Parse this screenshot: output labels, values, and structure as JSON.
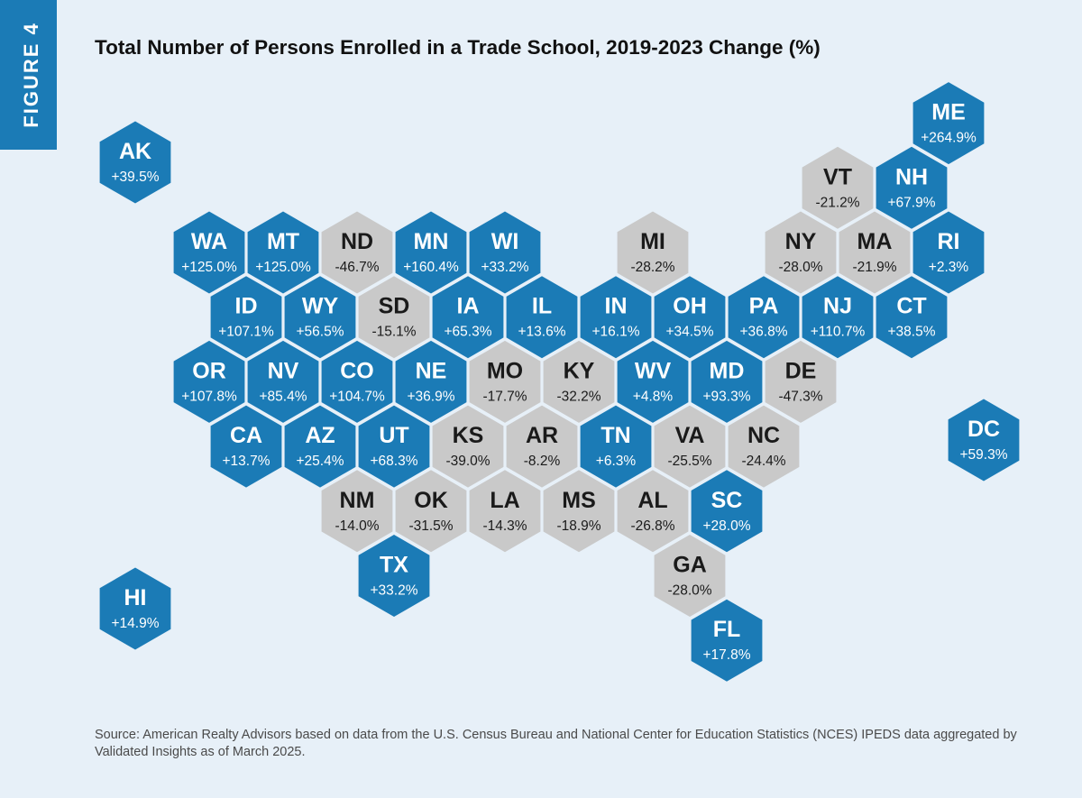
{
  "chart_data": {
    "type": "hexmap",
    "figure_label": "FIGURE 4",
    "title": "Total Number of Persons Enrolled in a Trade School, 2019-2023 Change (%)",
    "source": "Source: American Realty Advisors based on data from the U.S. Census Bureau and National Center for Education Statistics (NCES) IPEDS data aggregated by Validated Insights as of March 2025.",
    "colors": {
      "positive": "#1b7bb6",
      "negative": "#c9c9c9"
    },
    "categories": [
      "AK",
      "HI",
      "DC",
      "ME",
      "VT",
      "NH",
      "WA",
      "MT",
      "ND",
      "MN",
      "WI",
      "MI",
      "NY",
      "MA",
      "RI",
      "ID",
      "WY",
      "SD",
      "IA",
      "IL",
      "IN",
      "OH",
      "PA",
      "NJ",
      "CT",
      "OR",
      "NV",
      "CO",
      "NE",
      "MO",
      "KY",
      "WV",
      "MD",
      "DE",
      "CA",
      "AZ",
      "UT",
      "KS",
      "AR",
      "TN",
      "VA",
      "NC",
      "NM",
      "OK",
      "LA",
      "MS",
      "AL",
      "SC",
      "TX",
      "GA",
      "FL"
    ],
    "values": [
      39.5,
      14.9,
      59.3,
      264.9,
      -21.2,
      67.9,
      125.0,
      125.0,
      -46.7,
      160.4,
      33.2,
      -28.2,
      -28.0,
      -21.9,
      2.3,
      107.1,
      56.5,
      -15.1,
      65.3,
      13.6,
      16.1,
      34.5,
      36.8,
      110.7,
      38.5,
      107.8,
      85.4,
      104.7,
      36.9,
      -17.7,
      -32.2,
      4.8,
      93.3,
      -47.3,
      13.7,
      25.4,
      68.3,
      -39.0,
      -8.2,
      6.3,
      -25.5,
      -24.4,
      -14.0,
      -31.5,
      -14.3,
      -18.9,
      -26.8,
      28.0,
      33.2,
      -28.0,
      17.8
    ],
    "value_labels": [
      "+39.5%",
      "+14.9%",
      "+59.3%",
      "+264.9%",
      "-21.2%",
      "+67.9%",
      "+125.0%",
      "+125.0%",
      "-46.7%",
      "+160.4%",
      "+33.2%",
      "-28.2%",
      "-28.0%",
      "-21.9%",
      "+2.3%",
      "+107.1%",
      "+56.5%",
      "-15.1%",
      "+65.3%",
      "+13.6%",
      "+16.1%",
      "+34.5%",
      "+36.8%",
      "+110.7%",
      "+38.5%",
      "+107.8%",
      "+85.4%",
      "+104.7%",
      "+36.9%",
      "-17.7%",
      "-32.2%",
      "+4.8%",
      "+93.3%",
      "-47.3%",
      "+13.7%",
      "+25.4%",
      "+68.3%",
      "-39.0%",
      "-8.2%",
      "+6.3%",
      "-25.5%",
      "-24.4%",
      "-14.0%",
      "-31.5%",
      "-14.3%",
      "-18.9%",
      "-26.8%",
      "+28.0%",
      "+33.2%",
      "-28.0%",
      "+17.8%"
    ]
  }
}
